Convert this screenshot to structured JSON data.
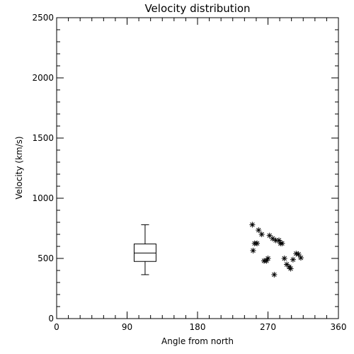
{
  "chart_data": {
    "type": "scatter",
    "title": "Velocity distribution",
    "xlabel": "Angle from north",
    "ylabel": "Velocity (km/s)",
    "xlim": [
      0,
      360
    ],
    "ylim": [
      0,
      2500
    ],
    "x_ticks": [
      0,
      90,
      180,
      270,
      360
    ],
    "y_ticks": [
      0,
      500,
      1000,
      1500,
      2000,
      2500
    ],
    "x_tick_labels": [
      "0",
      "90",
      "180",
      "270",
      "360"
    ],
    "y_tick_labels": [
      "0",
      "500",
      "1000",
      "1500",
      "2000",
      "2500"
    ],
    "grid": false,
    "box_plot": {
      "x": 113,
      "width_x": 28,
      "min": 365,
      "q1": 475,
      "median": 545,
      "q3": 620,
      "max": 780
    },
    "points": [
      {
        "x": 250,
        "y": 780
      },
      {
        "x": 258,
        "y": 735
      },
      {
        "x": 262,
        "y": 700
      },
      {
        "x": 253,
        "y": 625
      },
      {
        "x": 256,
        "y": 625
      },
      {
        "x": 251,
        "y": 565
      },
      {
        "x": 265,
        "y": 480
      },
      {
        "x": 268,
        "y": 480
      },
      {
        "x": 270,
        "y": 500
      },
      {
        "x": 272,
        "y": 690
      },
      {
        "x": 276,
        "y": 665
      },
      {
        "x": 280,
        "y": 650
      },
      {
        "x": 284,
        "y": 650
      },
      {
        "x": 286,
        "y": 625
      },
      {
        "x": 288,
        "y": 625
      },
      {
        "x": 278,
        "y": 365
      },
      {
        "x": 291,
        "y": 500
      },
      {
        "x": 294,
        "y": 450
      },
      {
        "x": 297,
        "y": 430
      },
      {
        "x": 299,
        "y": 415
      },
      {
        "x": 302,
        "y": 490
      },
      {
        "x": 306,
        "y": 540
      },
      {
        "x": 309,
        "y": 535
      },
      {
        "x": 312,
        "y": 505
      }
    ]
  }
}
